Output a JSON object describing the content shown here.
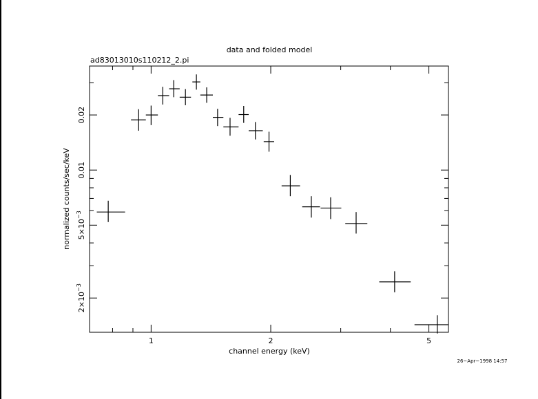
{
  "chart_data": {
    "type": "scatter",
    "title": "data and folded model",
    "subtitle": "ad83013010s110212_2.pi",
    "xlabel": "channel energy (keV)",
    "ylabel": "normalized counts/sec/keV",
    "xscale": "log",
    "yscale": "log",
    "xlim": [
      0.7,
      5.6
    ],
    "ylim": [
      0.0013,
      0.037
    ],
    "x_tick_labels": [
      {
        "value": 1,
        "label": "1"
      },
      {
        "value": 2,
        "label": "2"
      },
      {
        "value": 5,
        "label": "5"
      }
    ],
    "y_tick_labels": [
      {
        "value": 0.002,
        "label": "2×10",
        "exp": "−3"
      },
      {
        "value": 0.005,
        "label": "5×10",
        "exp": "−3"
      },
      {
        "value": 0.01,
        "label": "0.01",
        "exp": ""
      },
      {
        "value": 0.02,
        "label": "0.02",
        "exp": ""
      }
    ],
    "points": [
      {
        "x": 0.78,
        "xerr": [
          0.73,
          0.86
        ],
        "y": 0.0059,
        "yerr": [
          0.0052,
          0.0068
        ]
      },
      {
        "x": 0.93,
        "xerr": [
          0.89,
          0.97
        ],
        "y": 0.0188,
        "yerr": [
          0.0164,
          0.0215
        ]
      },
      {
        "x": 1.0,
        "xerr": [
          0.97,
          1.04
        ],
        "y": 0.02,
        "yerr": [
          0.0176,
          0.0225
        ]
      },
      {
        "x": 1.07,
        "xerr": [
          1.04,
          1.11
        ],
        "y": 0.0255,
        "yerr": [
          0.0228,
          0.0285
        ]
      },
      {
        "x": 1.14,
        "xerr": [
          1.11,
          1.18
        ],
        "y": 0.0278,
        "yerr": [
          0.025,
          0.031
        ]
      },
      {
        "x": 1.22,
        "xerr": [
          1.18,
          1.26
        ],
        "y": 0.025,
        "yerr": [
          0.0226,
          0.0277
        ]
      },
      {
        "x": 1.3,
        "xerr": [
          1.27,
          1.33
        ],
        "y": 0.0303,
        "yerr": [
          0.0275,
          0.0333
        ]
      },
      {
        "x": 1.38,
        "xerr": [
          1.33,
          1.43
        ],
        "y": 0.0257,
        "yerr": [
          0.0233,
          0.0283
        ]
      },
      {
        "x": 1.47,
        "xerr": [
          1.43,
          1.52
        ],
        "y": 0.0194,
        "yerr": [
          0.0174,
          0.0216
        ]
      },
      {
        "x": 1.58,
        "xerr": [
          1.52,
          1.66
        ],
        "y": 0.0172,
        "yerr": [
          0.0154,
          0.0193
        ]
      },
      {
        "x": 1.71,
        "xerr": [
          1.66,
          1.76
        ],
        "y": 0.0201,
        "yerr": [
          0.0181,
          0.0224
        ]
      },
      {
        "x": 1.83,
        "xerr": [
          1.76,
          1.91
        ],
        "y": 0.0164,
        "yerr": [
          0.0147,
          0.0183
        ]
      },
      {
        "x": 1.98,
        "xerr": [
          1.92,
          2.04
        ],
        "y": 0.0143,
        "yerr": [
          0.0126,
          0.0162
        ]
      },
      {
        "x": 2.24,
        "xerr": [
          2.13,
          2.37
        ],
        "y": 0.0082,
        "yerr": [
          0.0072,
          0.0094
        ]
      },
      {
        "x": 2.53,
        "xerr": [
          2.4,
          2.66
        ],
        "y": 0.0063,
        "yerr": [
          0.0055,
          0.0072
        ]
      },
      {
        "x": 2.83,
        "xerr": [
          2.67,
          3.01
        ],
        "y": 0.0062,
        "yerr": [
          0.0054,
          0.0071
        ]
      },
      {
        "x": 3.28,
        "xerr": [
          3.08,
          3.5
        ],
        "y": 0.0051,
        "yerr": [
          0.0045,
          0.0059
        ]
      },
      {
        "x": 4.1,
        "xerr": [
          3.75,
          4.5
        ],
        "y": 0.00245,
        "yerr": [
          0.00215,
          0.0028
        ]
      },
      {
        "x": 5.25,
        "xerr": [
          4.6,
          5.6
        ],
        "y": 0.00143,
        "yerr": [
          0.00128,
          0.00161
        ]
      }
    ]
  },
  "timestamp": "26−Apr−1998 14:57"
}
